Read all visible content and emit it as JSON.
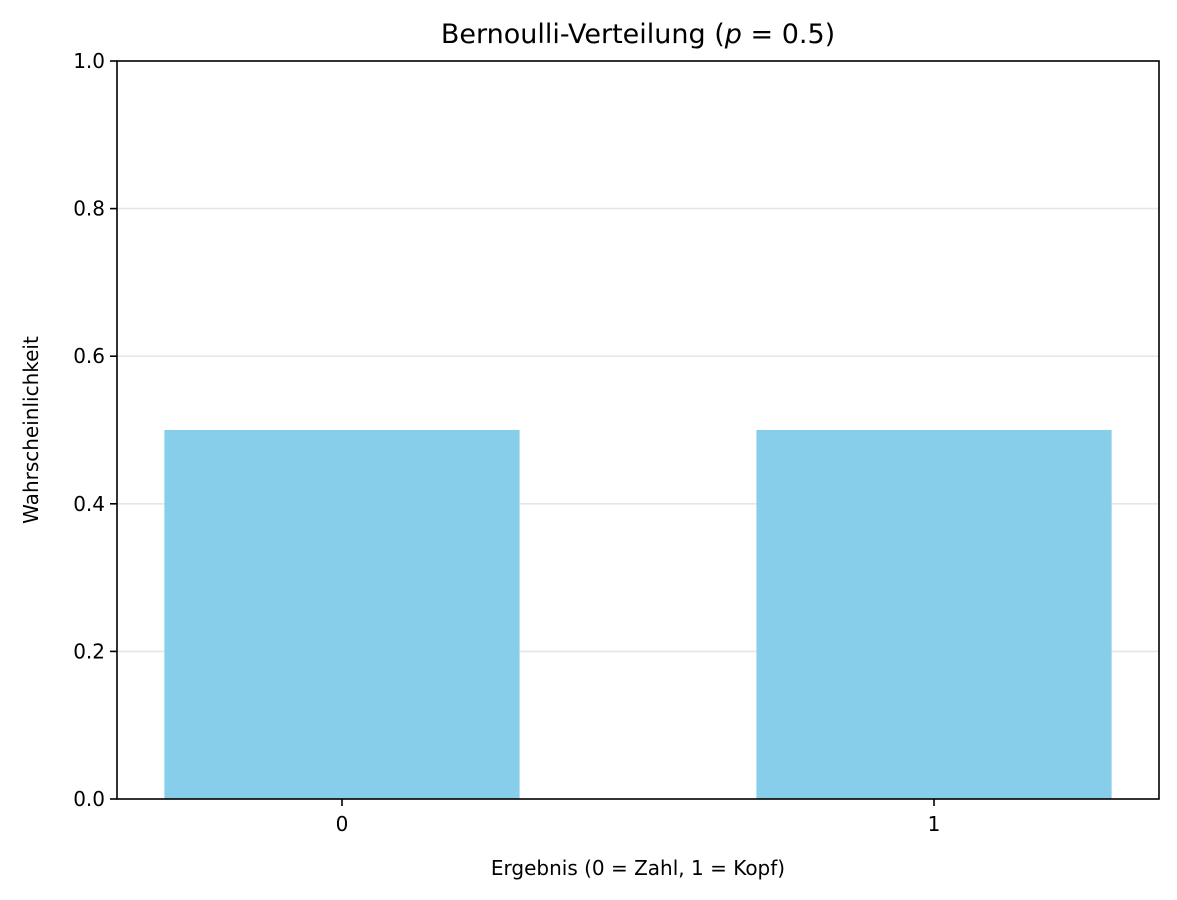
{
  "chart_data": {
    "type": "bar",
    "title": "Bernoulli-Verteilung (",
    "title_var": "p",
    "title_rest": " = 0.5)",
    "xlabel": "Ergebnis (0 = Zahl, 1 = Kopf)",
    "ylabel": "Wahrscheinlichkeit",
    "categories": [
      "0",
      "1"
    ],
    "values": [
      0.5,
      0.5
    ],
    "ylim": [
      0,
      1
    ],
    "yticks": [
      "0.0",
      "0.2",
      "0.4",
      "0.6",
      "0.8",
      "1.0"
    ],
    "grid": "y",
    "bar_color": "#87CEEB",
    "grid_color": "#e6e6e6"
  }
}
